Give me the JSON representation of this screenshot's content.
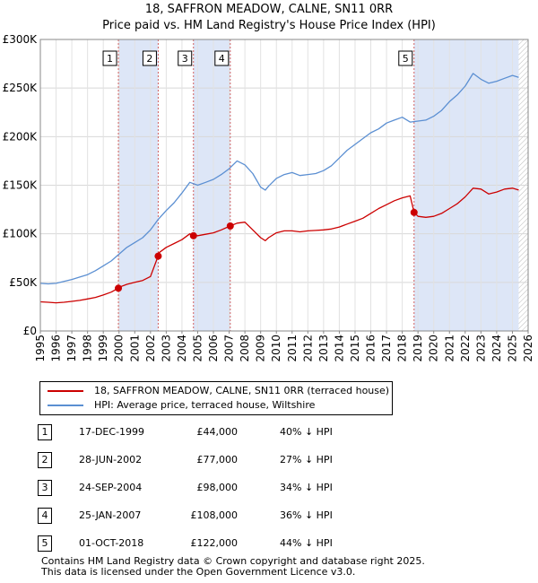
{
  "title_line1": "18, SAFFRON MEADOW, CALNE, SN11 0RR",
  "title_line2": "Price paid vs. HM Land Registry's House Price Index (HPI)",
  "chart_data": {
    "type": "line",
    "title": "18, SAFFRON MEADOW, CALNE, SN11 0RR",
    "subtitle": "Price paid vs. HM Land Registry's House Price Index (HPI)",
    "xlabel": "",
    "ylabel": "",
    "xlim": [
      1995,
      2026
    ],
    "ylim": [
      0,
      300000
    ],
    "y_ticks": [
      0,
      50000,
      100000,
      150000,
      200000,
      250000,
      300000
    ],
    "y_tick_labels": [
      "£0",
      "£50K",
      "£100K",
      "£150K",
      "£200K",
      "£250K",
      "£300K"
    ],
    "x_ticks": [
      1995,
      1996,
      1997,
      1998,
      1999,
      2000,
      2001,
      2002,
      2003,
      2004,
      2005,
      2006,
      2007,
      2008,
      2009,
      2010,
      2011,
      2012,
      2013,
      2014,
      2015,
      2016,
      2017,
      2018,
      2019,
      2020,
      2021,
      2022,
      2023,
      2024,
      2025,
      2026
    ],
    "grid": true,
    "colors": {
      "property": "#cc0000",
      "hpi": "#5b8fd2",
      "shade": "#dde6f7",
      "vline": "#d06060"
    },
    "series": [
      {
        "name": "18, SAFFRON MEADOW, CALNE, SN11 0RR (terraced house)",
        "color": "#cc0000",
        "x": [
          1995.0,
          1995.5,
          1996.0,
          1996.5,
          1997.0,
          1997.5,
          1998.0,
          1998.5,
          1999.0,
          1999.5,
          1999.96,
          2000.0,
          2000.5,
          2001.0,
          2001.5,
          2002.0,
          2002.48,
          2002.5,
          2003.0,
          2003.5,
          2004.0,
          2004.5,
          2004.73,
          2005.0,
          2005.5,
          2006.0,
          2006.5,
          2007.06,
          2007.5,
          2008.0,
          2008.5,
          2009.0,
          2009.3,
          2009.5,
          2010.0,
          2010.5,
          2011.0,
          2011.5,
          2012.0,
          2012.5,
          2013.0,
          2013.5,
          2014.0,
          2014.5,
          2015.0,
          2015.5,
          2016.0,
          2016.5,
          2017.0,
          2017.5,
          2018.0,
          2018.5,
          2018.75,
          2019.0,
          2019.5,
          2020.0,
          2020.5,
          2021.0,
          2021.5,
          2022.0,
          2022.5,
          2023.0,
          2023.5,
          2024.0,
          2024.5,
          2025.0,
          2025.4
        ],
        "values": [
          30000,
          29500,
          29000,
          29500,
          30500,
          31500,
          33000,
          34500,
          37000,
          40000,
          44000,
          45000,
          48000,
          50000,
          52000,
          56000,
          77000,
          80000,
          86000,
          90000,
          94000,
          100000,
          98000,
          98000,
          99500,
          101000,
          104000,
          108000,
          111000,
          112000,
          104000,
          96000,
          93000,
          96000,
          101000,
          103000,
          103000,
          102000,
          103000,
          103500,
          104000,
          105000,
          107000,
          110000,
          113000,
          116000,
          121000,
          126000,
          130000,
          134000,
          137000,
          139000,
          122000,
          118000,
          117000,
          118000,
          121000,
          126000,
          131000,
          138000,
          147000,
          146000,
          141000,
          143000,
          146000,
          147000,
          145000
        ]
      },
      {
        "name": "HPI: Average price, terraced house, Wiltshire",
        "color": "#5b8fd2",
        "x": [
          1995.0,
          1995.5,
          1996.0,
          1996.5,
          1997.0,
          1997.5,
          1998.0,
          1998.5,
          1999.0,
          1999.5,
          2000.0,
          2000.5,
          2001.0,
          2001.5,
          2002.0,
          2002.5,
          2003.0,
          2003.5,
          2004.0,
          2004.5,
          2005.0,
          2005.5,
          2006.0,
          2006.5,
          2007.0,
          2007.5,
          2008.0,
          2008.5,
          2009.0,
          2009.3,
          2009.5,
          2010.0,
          2010.5,
          2011.0,
          2011.5,
          2012.0,
          2012.5,
          2013.0,
          2013.5,
          2014.0,
          2014.5,
          2015.0,
          2015.5,
          2016.0,
          2016.5,
          2017.0,
          2017.5,
          2018.0,
          2018.5,
          2019.0,
          2019.5,
          2020.0,
          2020.5,
          2021.0,
          2021.5,
          2022.0,
          2022.5,
          2023.0,
          2023.5,
          2024.0,
          2024.5,
          2025.0,
          2025.4
        ],
        "values": [
          49000,
          48500,
          49000,
          51000,
          53000,
          55500,
          58000,
          62000,
          67000,
          72000,
          79000,
          86000,
          91000,
          96000,
          104000,
          115000,
          124000,
          132000,
          142000,
          153000,
          150000,
          153000,
          156000,
          161000,
          167000,
          175000,
          171000,
          162000,
          148000,
          145000,
          149000,
          157000,
          161000,
          163000,
          160000,
          161000,
          162000,
          165000,
          170000,
          178000,
          186000,
          192000,
          198000,
          204000,
          208000,
          214000,
          217000,
          220000,
          215000,
          216000,
          217000,
          221000,
          227000,
          236000,
          243000,
          252000,
          265000,
          259000,
          255000,
          257000,
          260000,
          263000,
          261000
        ]
      }
    ],
    "sales": [
      {
        "n": "1",
        "date": "17-DEC-1999",
        "price": "£44,000",
        "hpi": "40% ↓ HPI",
        "x": 1999.96,
        "value": 44000
      },
      {
        "n": "2",
        "date": "28-JUN-2002",
        "price": "£77,000",
        "hpi": "27% ↓ HPI",
        "x": 2002.49,
        "value": 77000
      },
      {
        "n": "3",
        "date": "24-SEP-2004",
        "price": "£98,000",
        "hpi": "34% ↓ HPI",
        "x": 2004.73,
        "value": 98000
      },
      {
        "n": "4",
        "date": "25-JAN-2007",
        "price": "£108,000",
        "hpi": "36% ↓ HPI",
        "x": 2007.07,
        "value": 108000
      },
      {
        "n": "5",
        "date": "01-OCT-2018",
        "price": "£122,000",
        "hpi": "44% ↓ HPI",
        "x": 2018.75,
        "value": 122000
      }
    ],
    "shaded_ranges": [
      [
        1999.96,
        2002.49
      ],
      [
        2004.73,
        2007.07
      ],
      [
        2018.75,
        2025.5
      ]
    ],
    "hatched_after": 2025.4
  },
  "legend": {
    "property_label": "18, SAFFRON MEADOW, CALNE, SN11 0RR (terraced house)",
    "hpi_label": "HPI: Average price, terraced house, Wiltshire"
  },
  "footer": {
    "line1": "Contains HM Land Registry data © Crown copyright and database right 2025.",
    "line2": "This data is licensed under the Open Government Licence v3.0."
  }
}
